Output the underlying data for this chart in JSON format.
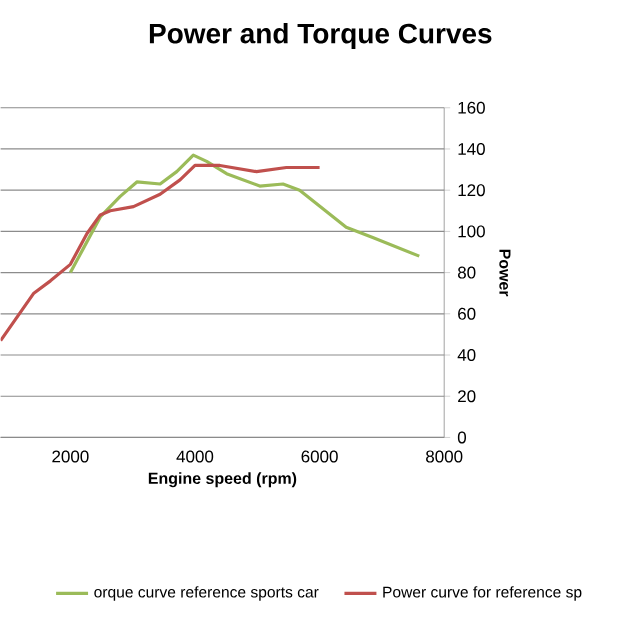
{
  "chart_data": {
    "type": "line",
    "title": "Power and Torque Curves",
    "xlabel": "Engine speed (rpm)",
    "ylabel": "Power",
    "xlim": [
      880,
      8000
    ],
    "xticks": [
      2000,
      4000,
      6000,
      8000
    ],
    "ylim": [
      0,
      160
    ],
    "yticks": [
      0,
      20,
      40,
      60,
      80,
      100,
      120,
      140,
      160
    ],
    "grid": "y",
    "legend": "bottom",
    "marker": "none",
    "line_style": "solid",
    "series": [
      {
        "name": "orque curve reference sports car",
        "color": "#9bbb59",
        "x": [
          2000,
          2213,
          2480,
          2800,
          3067,
          3440,
          3707,
          3973,
          4187,
          4507,
          5040,
          5413,
          5680,
          6427,
          6853,
          7600
        ],
        "values": [
          80,
          92,
          107,
          117,
          124,
          123,
          129,
          137,
          134,
          128,
          122,
          123,
          120,
          102,
          97,
          88
        ]
      },
      {
        "name": "Power curve for reference sp",
        "color": "#c0504d",
        "x": [
          880,
          1413,
          1680,
          2000,
          2267,
          2480,
          2640,
          3013,
          3440,
          3760,
          4000,
          4400,
          4987,
          5467,
          6000
        ],
        "values": [
          47,
          70,
          76,
          84,
          99,
          108,
          110,
          112,
          118,
          125,
          132,
          132,
          129,
          131,
          131
        ]
      }
    ]
  }
}
